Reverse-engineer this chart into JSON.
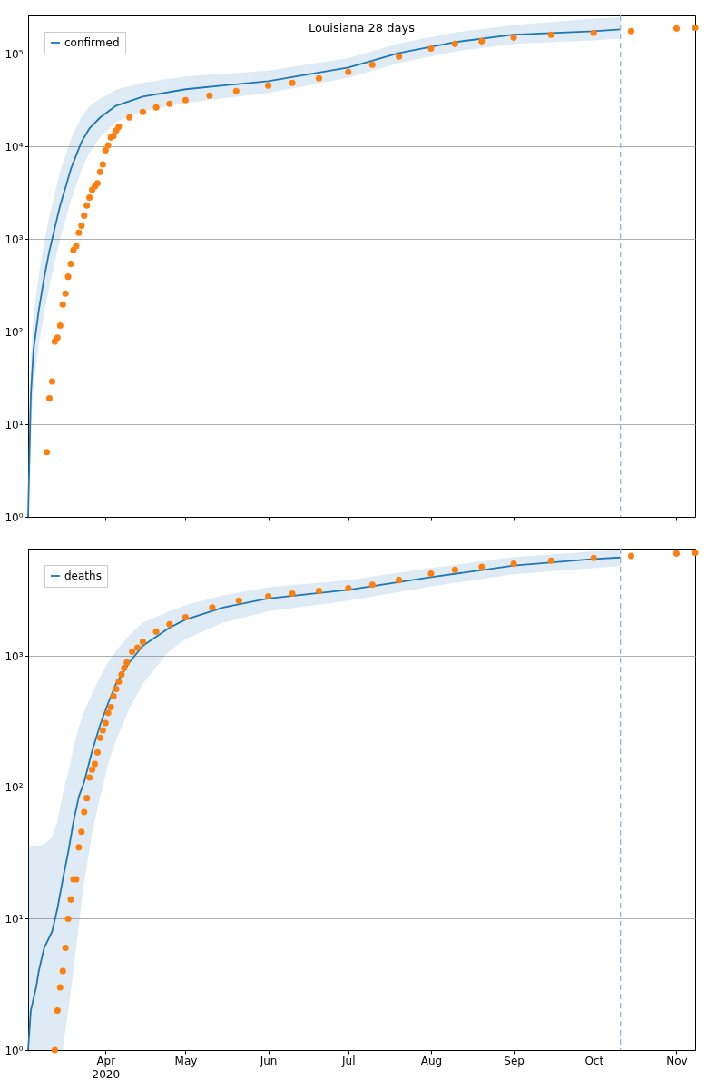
{
  "chart_data": [
    {
      "type": "line",
      "title": "Louisiana 28 days",
      "legend": "top left",
      "grid": "y",
      "log": "y",
      "tick_labels": "y",
      "xlim": [
        "2020-03-03",
        "2020-11-08"
      ],
      "xticks": [
        {
          "value": "2020-04-01",
          "label": null
        },
        {
          "value": "2020-05-01",
          "label": null
        },
        {
          "value": "2020-06-01",
          "label": null
        },
        {
          "value": "2020-07-01",
          "label": null
        },
        {
          "value": "2020-08-01",
          "label": null
        },
        {
          "value": "2020-09-01",
          "label": null
        },
        {
          "value": "2020-10-01",
          "label": null
        },
        {
          "value": "2020-11-01",
          "label": null
        }
      ],
      "ylim": [
        1,
        260000
      ],
      "yticks": [
        {
          "value": 1,
          "label": "10⁰"
        },
        {
          "value": 10,
          "label": "10¹"
        },
        {
          "value": 100,
          "label": "10²"
        },
        {
          "value": 1000,
          "label": "10³"
        },
        {
          "value": 10000,
          "label": "10⁴"
        },
        {
          "value": 100000,
          "label": "10⁵"
        }
      ],
      "ref_lines": [
        {
          "axis": "x",
          "value": "2020-10-11",
          "color": "#8fbbd9",
          "line_style": "dashed"
        }
      ],
      "series": [
        {
          "name": "confirmed",
          "type": "line",
          "color": "#1f77b4",
          "x": [
            "2020-03-03",
            "2020-03-04",
            "2020-03-05",
            "2020-03-07",
            "2020-03-09",
            "2020-03-11",
            "2020-03-13",
            "2020-03-15",
            "2020-03-17",
            "2020-03-19",
            "2020-03-21",
            "2020-03-23",
            "2020-03-26",
            "2020-03-30",
            "2020-04-05",
            "2020-04-15",
            "2020-05-01",
            "2020-06-01",
            "2020-07-01",
            "2020-07-20",
            "2020-08-10",
            "2020-09-01",
            "2020-10-01",
            "2020-10-11"
          ],
          "values": [
            1,
            20,
            63,
            170,
            380,
            750,
            1320,
            2300,
            3600,
            5700,
            8000,
            11200,
            15700,
            20600,
            27600,
            34600,
            41500,
            50800,
            71200,
            102000,
            134000,
            161000,
            176000,
            184000
          ],
          "upper": [
            5,
            50,
            150,
            410,
            910,
            1800,
            3100,
            5300,
            8000,
            12000,
            16000,
            21000,
            27000,
            33000,
            41000,
            49000,
            57000,
            66000,
            90000,
            130000,
            170000,
            205000,
            240000,
            250000
          ],
          "lower": [
            1,
            8,
            26,
            70,
            160,
            310,
            560,
            1000,
            1600,
            2600,
            3800,
            5600,
            8500,
            12500,
            18500,
            24000,
            29500,
            38000,
            55000,
            80000,
            106000,
            128000,
            140000,
            146000
          ]
        },
        {
          "type": "scatter",
          "marker": "circle",
          "color": "#ff7f0e",
          "x": [
            "2020-03-10",
            "2020-03-11",
            "2020-03-12",
            "2020-03-13",
            "2020-03-14",
            "2020-03-15",
            "2020-03-16",
            "2020-03-17",
            "2020-03-18",
            "2020-03-19",
            "2020-03-20",
            "2020-03-21",
            "2020-03-22",
            "2020-03-23",
            "2020-03-24",
            "2020-03-25",
            "2020-03-26",
            "2020-03-27",
            "2020-03-28",
            "2020-03-29",
            "2020-03-30",
            "2020-03-31",
            "2020-04-01",
            "2020-04-02",
            "2020-04-03",
            "2020-04-04",
            "2020-04-05",
            "2020-04-06",
            "2020-04-10",
            "2020-04-15",
            "2020-04-20",
            "2020-04-25",
            "2020-05-01",
            "2020-05-10",
            "2020-05-20",
            "2020-06-01",
            "2020-06-10",
            "2020-06-20",
            "2020-07-01",
            "2020-07-10",
            "2020-07-20",
            "2020-08-01",
            "2020-08-10",
            "2020-08-20",
            "2020-09-01",
            "2020-09-15",
            "2020-10-01",
            "2020-10-15",
            "2020-11-01",
            "2020-11-08"
          ],
          "values": [
            5,
            19,
            29,
            78,
            86,
            116,
            196,
            257,
            392,
            540,
            760,
            840,
            1170,
            1390,
            1790,
            2300,
            2800,
            3400,
            3700,
            4000,
            5300,
            6400,
            9100,
            10300,
            12500,
            13000,
            14900,
            16300,
            20600,
            23600,
            26400,
            28900,
            31600,
            35400,
            39600,
            45400,
            48600,
            54500,
            63600,
            76300,
            93500,
            114000,
            128000,
            137000,
            150000,
            161000,
            168000,
            176000,
            188000,
            192000
          ]
        }
      ]
    },
    {
      "type": "line",
      "legend": "top left",
      "grid": "y",
      "log": "y",
      "xlim": [
        "2020-03-03",
        "2020-11-08"
      ],
      "xticks": [
        {
          "value": "2020-04-01",
          "label": "Apr\n2020"
        },
        {
          "value": "2020-05-01",
          "label": "May"
        },
        {
          "value": "2020-06-01",
          "label": "Jun"
        },
        {
          "value": "2020-07-01",
          "label": "Jul"
        },
        {
          "value": "2020-08-01",
          "label": "Aug"
        },
        {
          "value": "2020-09-01",
          "label": "Sep"
        },
        {
          "value": "2020-10-01",
          "label": "Oct"
        },
        {
          "value": "2020-11-01",
          "label": "Nov"
        }
      ],
      "ylim": [
        1,
        6600
      ],
      "yticks": [
        {
          "value": 1,
          "label": "10⁰"
        },
        {
          "value": 10,
          "label": "10¹"
        },
        {
          "value": 100,
          "label": "10²"
        },
        {
          "value": 1000,
          "label": "10³"
        }
      ],
      "ref_lines": [
        {
          "axis": "x",
          "value": "2020-10-11",
          "color": "#8fbbd9",
          "line_style": "dashed"
        }
      ],
      "series": [
        {
          "name": "deaths",
          "type": "line",
          "color": "#1f77b4",
          "x": [
            "2020-03-03",
            "2020-03-04",
            "2020-03-06",
            "2020-03-07",
            "2020-03-09",
            "2020-03-12",
            "2020-03-14",
            "2020-03-16",
            "2020-03-18",
            "2020-03-20",
            "2020-03-22",
            "2020-03-24",
            "2020-03-27",
            "2020-03-30",
            "2020-04-02",
            "2020-04-05",
            "2020-04-10",
            "2020-04-15",
            "2020-04-25",
            "2020-05-01",
            "2020-05-15",
            "2020-06-01",
            "2020-07-01",
            "2020-08-01",
            "2020-09-01",
            "2020-10-01",
            "2020-10-11"
          ],
          "values": [
            1,
            2,
            3,
            4,
            6,
            8,
            12,
            20,
            32,
            55,
            85,
            110,
            190,
            300,
            440,
            620,
            900,
            1200,
            1650,
            1900,
            2350,
            2750,
            3200,
            4000,
            4900,
            5500,
            5650
          ],
          "upper": [
            36,
            36,
            36,
            36,
            37,
            42,
            55,
            90,
            130,
            200,
            290,
            380,
            520,
            700,
            900,
            1100,
            1450,
            1800,
            2200,
            2450,
            2900,
            3350,
            3800,
            4700,
            5700,
            6300,
            6450
          ],
          "lower": [
            1,
            1,
            1,
            1,
            1,
            1,
            1,
            1,
            2,
            4,
            9,
            19,
            45,
            85,
            150,
            230,
            400,
            620,
            1100,
            1350,
            1800,
            2200,
            2650,
            3400,
            4200,
            4700,
            4850
          ]
        },
        {
          "type": "scatter",
          "marker": "circle",
          "color": "#ff7f0e",
          "x": [
            "2020-03-13",
            "2020-03-14",
            "2020-03-15",
            "2020-03-16",
            "2020-03-17",
            "2020-03-18",
            "2020-03-19",
            "2020-03-20",
            "2020-03-21",
            "2020-03-22",
            "2020-03-23",
            "2020-03-24",
            "2020-03-25",
            "2020-03-26",
            "2020-03-27",
            "2020-03-28",
            "2020-03-29",
            "2020-03-30",
            "2020-03-31",
            "2020-04-01",
            "2020-04-02",
            "2020-04-03",
            "2020-04-04",
            "2020-04-05",
            "2020-04-06",
            "2020-04-07",
            "2020-04-08",
            "2020-04-09",
            "2020-04-11",
            "2020-04-13",
            "2020-04-15",
            "2020-04-20",
            "2020-04-25",
            "2020-05-01",
            "2020-05-11",
            "2020-05-21",
            "2020-06-01",
            "2020-06-10",
            "2020-06-20",
            "2020-07-01",
            "2020-07-10",
            "2020-07-20",
            "2020-08-01",
            "2020-08-10",
            "2020-08-20",
            "2020-09-01",
            "2020-09-15",
            "2020-10-01",
            "2020-10-15",
            "2020-11-01",
            "2020-11-08"
          ],
          "values": [
            1,
            2,
            3,
            4,
            6,
            10,
            14,
            20,
            20,
            35,
            46,
            65,
            83,
            119,
            137,
            151,
            185,
            239,
            273,
            310,
            370,
            409,
            496,
            563,
            640,
            727,
            813,
            895,
            1080,
            1160,
            1290,
            1540,
            1750,
            1980,
            2350,
            2650,
            2860,
            3000,
            3150,
            3300,
            3500,
            3800,
            4260,
            4550,
            4800,
            5080,
            5350,
            5600,
            5800,
            6060,
            6150
          ]
        }
      ]
    }
  ]
}
